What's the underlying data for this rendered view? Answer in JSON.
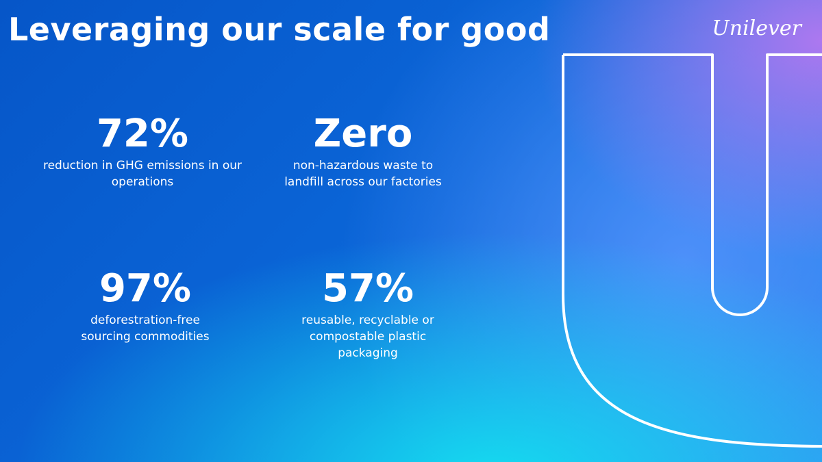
{
  "header": {
    "title": "Leveraging our scale for good",
    "logo": "Unilever"
  },
  "stats": [
    {
      "value": "72%",
      "label": "reduction in GHG emissions in our operations"
    },
    {
      "value": "Zero",
      "label": "non-hazardous waste to landfill across our factories"
    },
    {
      "value": "97%",
      "label": "deforestration-free sourcing commodities"
    },
    {
      "value": "57%",
      "label": "reusable, recyclable or compostable plastic packaging"
    }
  ]
}
